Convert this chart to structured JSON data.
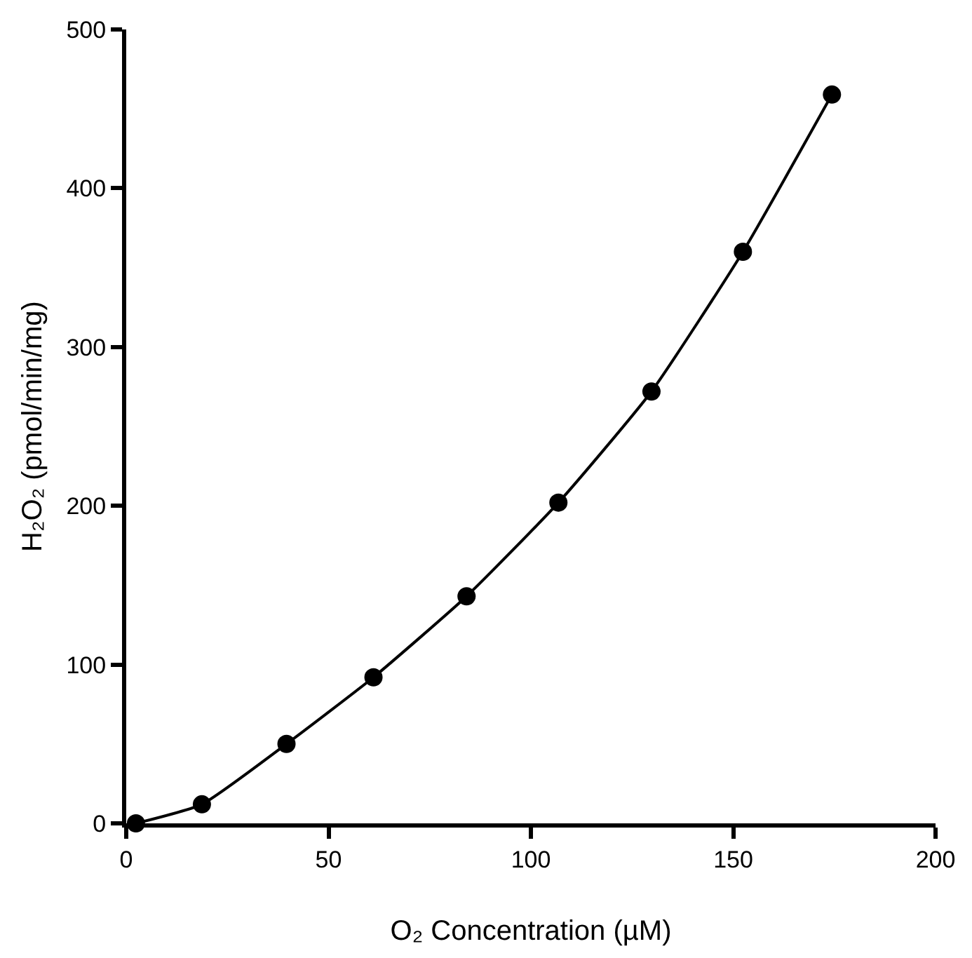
{
  "chart_data": {
    "type": "line",
    "xlabel": "O₂ Concentration (µM)",
    "ylabel": "H₂O₂ (pmol/min/mg)",
    "x": [
      2.4,
      18.7,
      39.6,
      61.1,
      84.1,
      106.8,
      129.8,
      152.4,
      174.4
    ],
    "series": [
      {
        "color": "#000000",
        "values": [
          0,
          12,
          50,
          92,
          143,
          202,
          272,
          360,
          459
        ]
      }
    ],
    "xlim": [
      0,
      200
    ],
    "xticks": [
      0,
      50,
      100,
      150,
      200
    ],
    "ylim": [
      0,
      500
    ],
    "yticks": [
      0,
      100,
      200,
      300,
      400,
      500
    ],
    "marker": "circle",
    "line_style": "solid"
  }
}
